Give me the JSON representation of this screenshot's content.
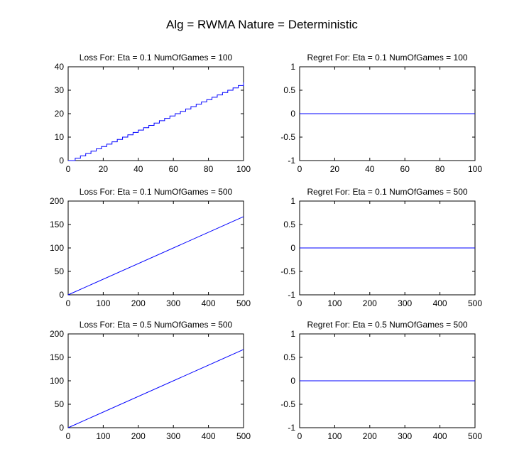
{
  "figure": {
    "suptitle": "Alg = RWMA Nature = Deterministic"
  },
  "chart_data": [
    {
      "type": "line",
      "title": "Loss For: Eta = 0.1 NumOfGames = 100",
      "xlabel": "",
      "ylabel": "",
      "xlim": [
        0,
        100
      ],
      "ylim": [
        0,
        40
      ],
      "xticks": [
        0,
        20,
        40,
        60,
        80,
        100
      ],
      "yticks": [
        0,
        10,
        20,
        30,
        40
      ],
      "step": true,
      "series": [
        {
          "x": [
            0,
            100
          ],
          "y": [
            0,
            33.3
          ],
          "color": "#0000ff"
        }
      ]
    },
    {
      "type": "line",
      "title": "Regret For: Eta = 0.1 NumOfGames = 100",
      "xlabel": "",
      "ylabel": "",
      "xlim": [
        0,
        100
      ],
      "ylim": [
        -1,
        1
      ],
      "xticks": [
        0,
        20,
        40,
        60,
        80,
        100
      ],
      "yticks": [
        -1,
        -0.5,
        0,
        0.5,
        1
      ],
      "series": [
        {
          "x": [
            0,
            100
          ],
          "y": [
            0,
            0
          ],
          "color": "#0000ff"
        }
      ]
    },
    {
      "type": "line",
      "title": "Loss For: Eta = 0.1 NumOfGames = 500",
      "xlabel": "",
      "ylabel": "",
      "xlim": [
        0,
        500
      ],
      "ylim": [
        0,
        200
      ],
      "xticks": [
        0,
        100,
        200,
        300,
        400,
        500
      ],
      "yticks": [
        0,
        50,
        100,
        150,
        200
      ],
      "series": [
        {
          "x": [
            0,
            500
          ],
          "y": [
            0,
            166.7
          ],
          "color": "#0000ff"
        }
      ]
    },
    {
      "type": "line",
      "title": "Regret For: Eta = 0.1 NumOfGames = 500",
      "xlabel": "",
      "ylabel": "",
      "xlim": [
        0,
        500
      ],
      "ylim": [
        -1,
        1
      ],
      "xticks": [
        0,
        100,
        200,
        300,
        400,
        500
      ],
      "yticks": [
        -1,
        -0.5,
        0,
        0.5,
        1
      ],
      "series": [
        {
          "x": [
            0,
            500
          ],
          "y": [
            0,
            0
          ],
          "color": "#0000ff"
        }
      ]
    },
    {
      "type": "line",
      "title": "Loss For: Eta = 0.5 NumOfGames = 500",
      "xlabel": "",
      "ylabel": "",
      "xlim": [
        0,
        500
      ],
      "ylim": [
        0,
        200
      ],
      "xticks": [
        0,
        100,
        200,
        300,
        400,
        500
      ],
      "yticks": [
        0,
        50,
        100,
        150,
        200
      ],
      "series": [
        {
          "x": [
            0,
            500
          ],
          "y": [
            0,
            166.7
          ],
          "color": "#0000ff"
        }
      ]
    },
    {
      "type": "line",
      "title": "Regret For: Eta = 0.5 NumOfGames = 500",
      "xlabel": "",
      "ylabel": "",
      "xlim": [
        0,
        500
      ],
      "ylim": [
        -1,
        1
      ],
      "xticks": [
        0,
        100,
        200,
        300,
        400,
        500
      ],
      "yticks": [
        -1,
        -0.5,
        0,
        0.5,
        1
      ],
      "series": [
        {
          "x": [
            0,
            500
          ],
          "y": [
            0,
            0
          ],
          "color": "#0000ff"
        }
      ]
    }
  ]
}
